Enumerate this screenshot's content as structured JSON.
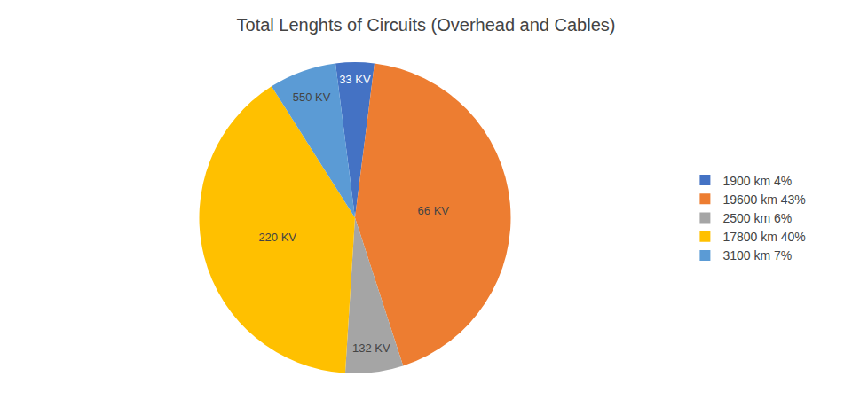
{
  "chart_data": {
    "type": "pie",
    "title": "Total Lenghts of Circuits (Overhead and Cables)",
    "categories": [
      "33 KV",
      "66 KV",
      "132 KV",
      "220 KV",
      "550 KV"
    ],
    "values": [
      4,
      43,
      6,
      40,
      7
    ],
    "colors": [
      "#4472C4",
      "#ED7D31",
      "#A5A5A5",
      "#FFC000",
      "#5B9BD5"
    ],
    "legend_labels": [
      "1900 km 4%",
      "19600 km 43%",
      "2500 km 6%",
      "17800 km 40%",
      "3100 km 7%"
    ],
    "legend": "right"
  }
}
